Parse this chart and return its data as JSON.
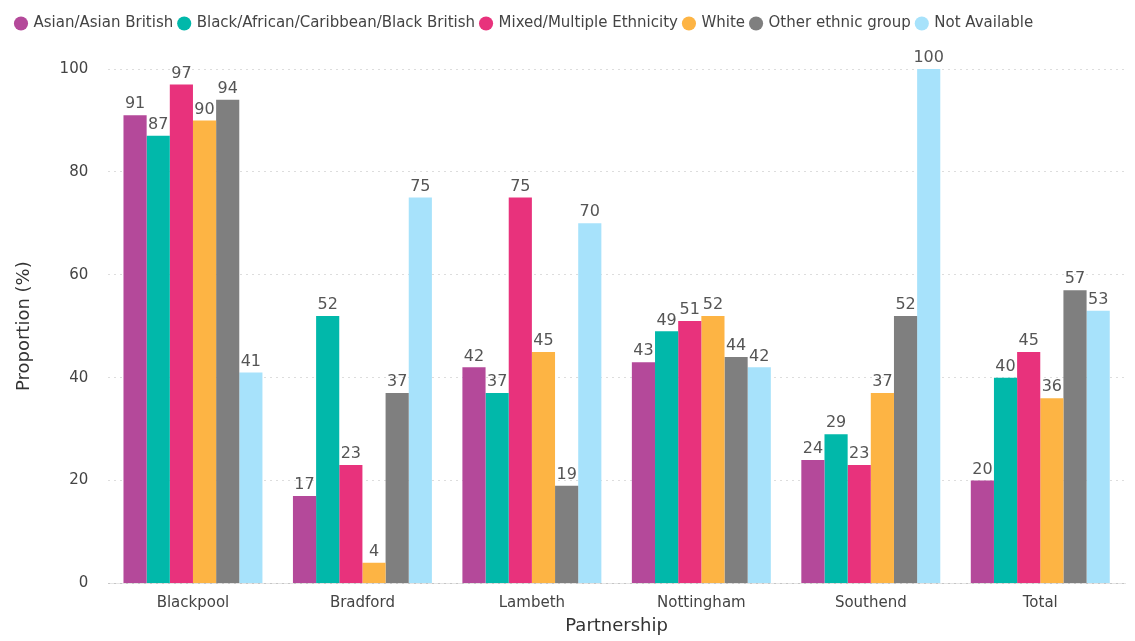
{
  "chart_data": {
    "type": "bar",
    "xlabel": "Partnership",
    "ylabel": "Proportion (%)",
    "categories": [
      "Blackpool",
      "Bradford",
      "Lambeth",
      "Nottingham",
      "Southend",
      "Total"
    ],
    "series": [
      {
        "name": "Asian/Asian British",
        "color": "#b4499a",
        "values": [
          91,
          17,
          42,
          43,
          24,
          20
        ]
      },
      {
        "name": "Black/African/Caribbean/Black British",
        "color": "#01b8aa",
        "values": [
          87,
          52,
          37,
          49,
          29,
          40
        ]
      },
      {
        "name": "Mixed/Multiple Ethnicity",
        "color": "#e8327c",
        "values": [
          97,
          23,
          75,
          51,
          23,
          45
        ]
      },
      {
        "name": "White",
        "color": "#fdb444",
        "values": [
          90,
          4,
          45,
          52,
          37,
          36
        ]
      },
      {
        "name": "Other ethnic group",
        "color": "#7f7f7f",
        "values": [
          94,
          37,
          19,
          44,
          52,
          57
        ]
      },
      {
        "name": "Not Available",
        "color": "#a7e2fb",
        "values": [
          41,
          75,
          70,
          42,
          100,
          53
        ]
      }
    ],
    "ylim": [
      0,
      100
    ],
    "yticks": [
      0,
      20,
      40,
      60,
      80,
      100
    ],
    "grid": "y",
    "legend": "top left",
    "data_labels": true
  }
}
